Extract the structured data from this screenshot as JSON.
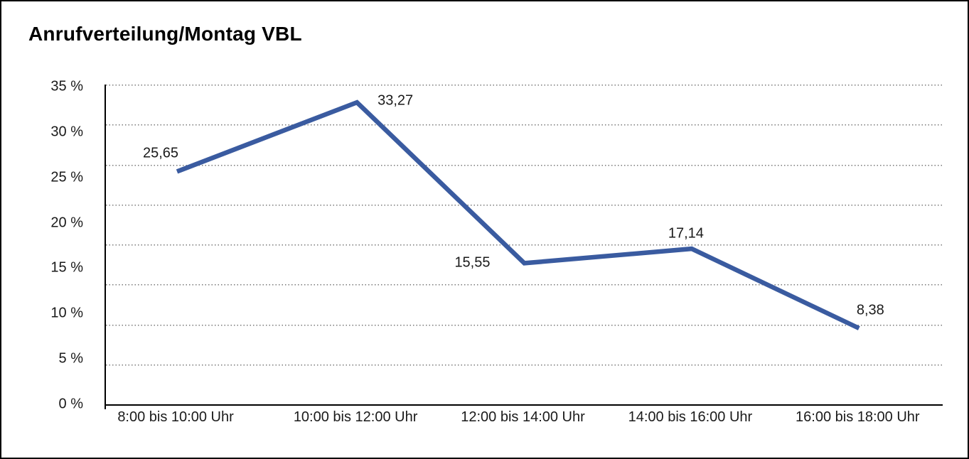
{
  "window": {
    "background_color": "#ffffff",
    "border_color": "#000000"
  },
  "header": {
    "title": "Anrufverteilung/Montag VBL"
  },
  "chart_data": {
    "type": "line",
    "title": "Anrufverteilung/Montag VBL",
    "categories": [
      "8:00 bis 10:00 Uhr",
      "10:00 bis 12:00 Uhr",
      "12:00 bis 14:00 Uhr",
      "14:00 bis 16:00 Uhr",
      "16:00 bis 18:00 Uhr"
    ],
    "values": [
      25.65,
      33.27,
      15.55,
      17.14,
      8.38
    ],
    "point_labels": [
      "25,65",
      "33,27",
      "15,55",
      "17,14",
      "8,38"
    ],
    "yticks": [
      {
        "label": "35 %",
        "value": 35
      },
      {
        "label": "30 %",
        "value": 30
      },
      {
        "label": "25 %",
        "value": 25
      },
      {
        "label": "20 %",
        "value": 20
      },
      {
        "label": "15 %",
        "value": 15
      },
      {
        "label": "10 %",
        "value": 10
      },
      {
        "label": "5 %",
        "value": 5
      },
      {
        "label": "0 %",
        "value": 0
      }
    ],
    "ylim": [
      0,
      35
    ],
    "xlabel": "",
    "ylabel": "",
    "grid": "horizontal-dotted",
    "gridline_count": 9,
    "legend": "none",
    "line_color": "#3A5BA0",
    "label_color": "#1a1a1a",
    "label_placements": [
      "above-left",
      "right",
      "left",
      "above",
      "above"
    ]
  }
}
